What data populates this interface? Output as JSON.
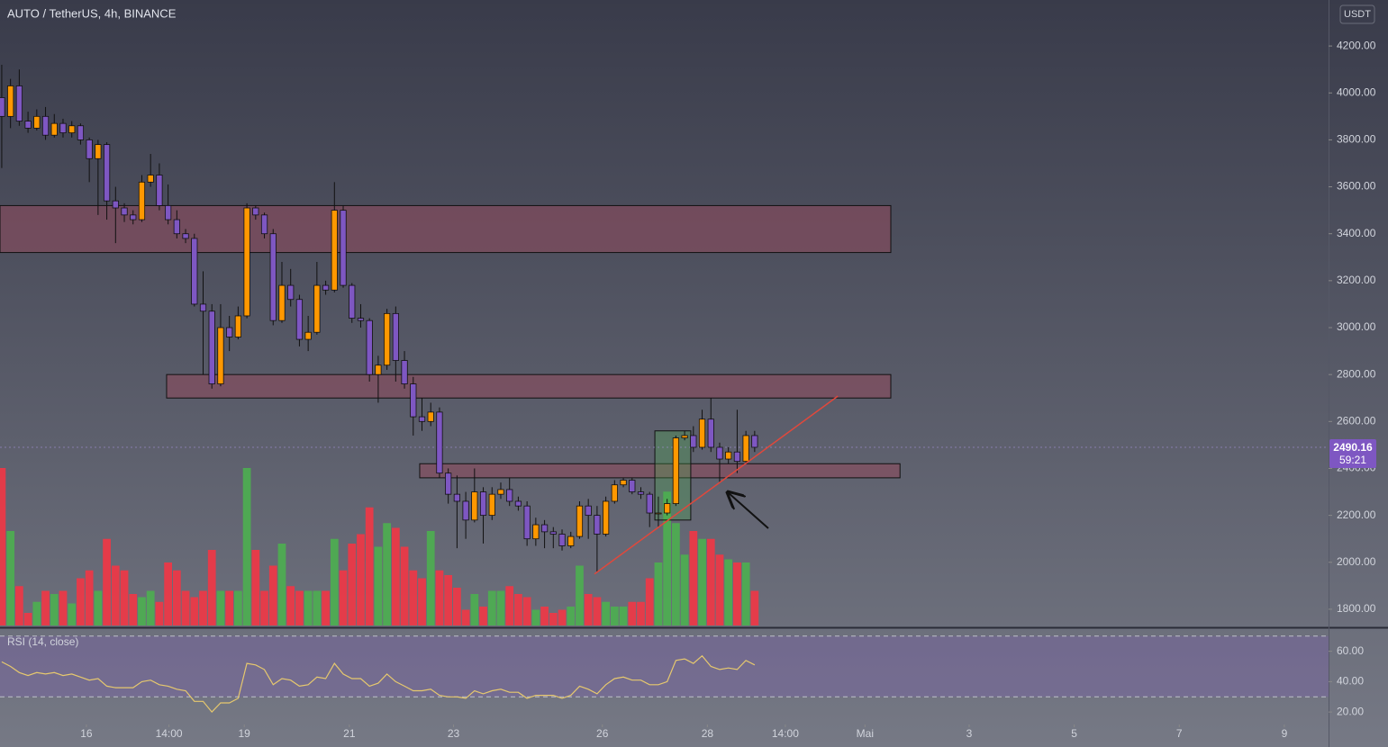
{
  "chart_data": {
    "type": "candlestick",
    "title": "AUTO / TetherUS, 4h, BINANCE",
    "currency_button": "USDT",
    "up_color": "#ff9800",
    "down_color": "#7e57c2",
    "volume_up_color": "#4caf50",
    "volume_down_color": "#f23645",
    "open": [
      3980,
      3900,
      4030,
      3880,
      3850,
      3900,
      3820,
      3870,
      3830,
      3860,
      3800,
      3720,
      3780,
      3540,
      3510,
      3480,
      3460,
      3620,
      3650,
      3520,
      3460,
      3400,
      3380,
      3100,
      3070,
      2760,
      3000,
      2960,
      3050,
      3510,
      3480,
      3400,
      3030,
      3180,
      3120,
      2950,
      2980,
      3180,
      3160,
      3500,
      3180,
      3040,
      3030,
      2800,
      2840,
      3060,
      2860,
      2760,
      2620,
      2600,
      2640,
      2380,
      2290,
      2260,
      2180,
      2300,
      2200,
      2290,
      2310,
      2260,
      2240,
      2100,
      2160,
      2130,
      2120,
      2070,
      2110,
      2240,
      2200,
      2120,
      2260,
      2330,
      2350,
      2300,
      2290,
      2210,
      2210,
      2250,
      2530,
      2540,
      2490,
      2610,
      2490,
      2440,
      2470,
      2430,
      2540
    ],
    "high": [
      4120,
      4060,
      4100,
      3920,
      3930,
      3940,
      3910,
      3890,
      3880,
      3870,
      3810,
      3800,
      3790,
      3600,
      3530,
      3500,
      3650,
      3740,
      3700,
      3610,
      3500,
      3420,
      3400,
      3240,
      3100,
      3100,
      3050,
      3090,
      3530,
      3520,
      3490,
      3420,
      3280,
      3250,
      3140,
      3050,
      3280,
      3200,
      3620,
      3520,
      3190,
      3100,
      3040,
      2880,
      3080,
      3090,
      2900,
      2790,
      2700,
      2680,
      2660,
      2400,
      2370,
      2300,
      2400,
      2320,
      2320,
      2340,
      2360,
      2280,
      2260,
      2190,
      2180,
      2150,
      2140,
      2130,
      2260,
      2270,
      2240,
      2280,
      2350,
      2360,
      2360,
      2320,
      2300,
      2280,
      2270,
      2540,
      2560,
      2580,
      2650,
      2700,
      2510,
      2490,
      2650,
      2560,
      2560
    ],
    "low": [
      3680,
      3850,
      3860,
      3830,
      3840,
      3800,
      3810,
      3810,
      3810,
      3780,
      3620,
      3480,
      3460,
      3360,
      3450,
      3440,
      3450,
      3600,
      3500,
      3440,
      3380,
      3360,
      3090,
      2800,
      2740,
      2750,
      2900,
      2950,
      3040,
      3460,
      3380,
      3010,
      3020,
      3090,
      2920,
      2900,
      2970,
      3140,
      3150,
      3170,
      3020,
      3000,
      2770,
      2680,
      2820,
      2770,
      2740,
      2540,
      2560,
      2580,
      2360,
      2250,
      2060,
      2100,
      2170,
      2080,
      2180,
      2270,
      2240,
      2220,
      2070,
      2070,
      2060,
      2060,
      2050,
      2060,
      2100,
      2100,
      1960,
      2110,
      2250,
      2320,
      2290,
      2270,
      2150,
      2150,
      2200,
      2240,
      2520,
      2470,
      2480,
      2470,
      2340,
      2420,
      2380,
      2420,
      2470
    ],
    "close": [
      3900,
      4030,
      3880,
      3850,
      3900,
      3820,
      3870,
      3830,
      3860,
      3800,
      3720,
      3780,
      3540,
      3510,
      3480,
      3460,
      3620,
      3650,
      3520,
      3460,
      3400,
      3380,
      3100,
      3070,
      2760,
      3000,
      2960,
      3050,
      3510,
      3480,
      3400,
      3030,
      3180,
      3120,
      2950,
      2980,
      3180,
      3160,
      3500,
      3180,
      3040,
      3030,
      2800,
      2840,
      3060,
      2860,
      2760,
      2620,
      2600,
      2640,
      2380,
      2290,
      2260,
      2180,
      2300,
      2200,
      2290,
      2310,
      2260,
      2240,
      2100,
      2160,
      2130,
      2120,
      2070,
      2110,
      2240,
      2200,
      2120,
      2260,
      2330,
      2350,
      2300,
      2290,
      2210,
      2210,
      2250,
      2530,
      2540,
      2490,
      2610,
      2490,
      2440,
      2470,
      2430,
      2540,
      2490
    ],
    "volume": [
      100,
      60,
      25,
      8,
      15,
      22,
      20,
      22,
      14,
      30,
      35,
      22,
      55,
      38,
      35,
      20,
      18,
      22,
      15,
      40,
      35,
      22,
      18,
      22,
      48,
      22,
      22,
      22,
      100,
      48,
      22,
      38,
      52,
      25,
      22,
      22,
      22,
      22,
      55,
      35,
      52,
      58,
      75,
      50,
      65,
      62,
      50,
      35,
      30,
      60,
      35,
      32,
      24,
      10,
      20,
      12,
      22,
      22,
      25,
      20,
      18,
      10,
      12,
      8,
      10,
      12,
      38,
      20,
      18,
      15,
      12,
      12,
      15,
      15,
      30,
      40,
      85,
      65,
      45,
      60,
      55,
      55,
      45,
      42,
      40,
      40,
      22
    ],
    "xlim": [
      -0.2,
      151.55
    ],
    "xticks": [
      {
        "value": 9.67,
        "label": "16"
      },
      {
        "value": 19.1,
        "label": "14:00"
      },
      {
        "value": 27.7,
        "label": "19"
      },
      {
        "value": 39.7,
        "label": "21"
      },
      {
        "value": 51.6,
        "label": "23"
      },
      {
        "value": 68.6,
        "label": "26"
      },
      {
        "value": 80.6,
        "label": "28"
      },
      {
        "value": 89.5,
        "label": "14:00"
      },
      {
        "value": 98.6,
        "label": "Mai"
      },
      {
        "value": 110.5,
        "label": "3"
      },
      {
        "value": 122.5,
        "label": "5"
      },
      {
        "value": 134.5,
        "label": "7"
      },
      {
        "value": 146.5,
        "label": "9"
      }
    ],
    "ylim": [
      1723,
      4396
    ],
    "yticks": [
      {
        "value": 1800,
        "label": "1800.00"
      },
      {
        "value": 2000,
        "label": "2000.00"
      },
      {
        "value": 2200,
        "label": "2200.00"
      },
      {
        "value": 2400,
        "label": "2400.00"
      },
      {
        "value": 2600,
        "label": "2600.00"
      },
      {
        "value": 2800,
        "label": "2800.00"
      },
      {
        "value": 3000,
        "label": "3000.00"
      },
      {
        "value": 3200,
        "label": "3200.00"
      },
      {
        "value": 3400,
        "label": "3400.00"
      },
      {
        "value": 3600,
        "label": "3600.00"
      },
      {
        "value": 3800,
        "label": "3800.00"
      },
      {
        "value": 4000,
        "label": "4000.00"
      },
      {
        "value": 4200,
        "label": "4200.00"
      }
    ],
    "zones": [
      {
        "low": 3320,
        "high": 3520,
        "from": -0.2,
        "to": 101.55
      },
      {
        "low": 2700,
        "high": 2800,
        "from": 18.83,
        "to": 101.55
      },
      {
        "low": 2360,
        "high": 2420,
        "from": 47.74,
        "to": 102.6
      }
    ],
    "box": {
      "low": 2180,
      "high": 2560,
      "from": 74.6,
      "to": 78.7
    },
    "trend_line": {
      "x": [
        67.7,
        95.5
      ],
      "y": [
        1950,
        2708
      ]
    },
    "last_price": 2490.16,
    "countdown": "59:21",
    "rsi": {
      "label": "RSI (14, close)",
      "color": "#e6c86e",
      "values": [
        53,
        50,
        46,
        44,
        46,
        45,
        46,
        44,
        45,
        43,
        41,
        42,
        37,
        36,
        36,
        36,
        40,
        41,
        38,
        37,
        35,
        34,
        27,
        27,
        20,
        26,
        26,
        29,
        52,
        51,
        48,
        38,
        42,
        41,
        37,
        38,
        43,
        42,
        52,
        45,
        42,
        42,
        37,
        39,
        45,
        40,
        37,
        34,
        34,
        35,
        31,
        30,
        30,
        29,
        34,
        32,
        34,
        35,
        33,
        33,
        29,
        31,
        31,
        31,
        29,
        31,
        37,
        35,
        32,
        38,
        42,
        43,
        41,
        41,
        38,
        38,
        40,
        54,
        55,
        52,
        57,
        50,
        48,
        49,
        48,
        54,
        51
      ],
      "ylim": [
        10,
        74
      ],
      "yticks": [
        {
          "value": 20,
          "label": "20.00"
        },
        {
          "value": 40,
          "label": "40.00"
        },
        {
          "value": 60,
          "label": "60.00"
        }
      ],
      "bands": [
        70,
        30
      ]
    }
  }
}
